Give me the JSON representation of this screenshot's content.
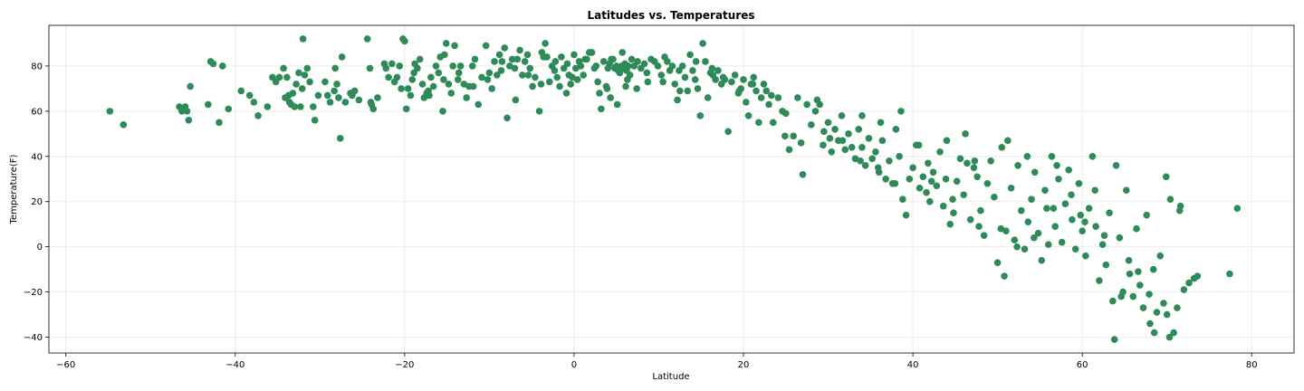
{
  "chart_data": {
    "type": "scatter",
    "title": "Latitudes vs. Temperatures",
    "xlabel": "Latitude",
    "ylabel": "Temperature(F)",
    "xlim": [
      -62,
      85
    ],
    "ylim": [
      -47,
      98
    ],
    "xticks": [
      -60,
      -40,
      -20,
      0,
      20,
      40,
      60,
      80
    ],
    "yticks": [
      -40,
      -20,
      0,
      20,
      40,
      60,
      80
    ],
    "grid": true,
    "marker_color": "#2e8b57",
    "points": [
      [
        -54.8,
        60
      ],
      [
        -53.2,
        54
      ],
      [
        -46.6,
        62
      ],
      [
        -46.3,
        60
      ],
      [
        -46.1,
        61
      ],
      [
        -45.9,
        62
      ],
      [
        -45.7,
        60
      ],
      [
        -45.5,
        56
      ],
      [
        -45.3,
        71
      ],
      [
        -43.2,
        63
      ],
      [
        -42.9,
        82
      ],
      [
        -42.6,
        81
      ],
      [
        -41.9,
        55
      ],
      [
        -41.5,
        80
      ],
      [
        -40.8,
        61
      ],
      [
        -39.3,
        69
      ],
      [
        -38.3,
        67
      ],
      [
        -37.8,
        64
      ],
      [
        -37.3,
        58
      ],
      [
        -36.2,
        62
      ],
      [
        -35.2,
        73
      ],
      [
        -34.8,
        75
      ],
      [
        -34.3,
        79
      ],
      [
        -34.1,
        66
      ],
      [
        -33.9,
        75
      ],
      [
        -33.6,
        64
      ],
      [
        -33.4,
        63
      ],
      [
        -33.2,
        68
      ],
      [
        -33.0,
        62
      ],
      [
        -32.8,
        72
      ],
      [
        -32.5,
        77
      ],
      [
        -32.3,
        62
      ],
      [
        -32.0,
        92
      ],
      [
        -31.8,
        76
      ],
      [
        -31.5,
        79
      ],
      [
        -31.2,
        73
      ],
      [
        -30.8,
        62
      ],
      [
        -30.6,
        56
      ],
      [
        -29.4,
        73
      ],
      [
        -29.1,
        67
      ],
      [
        -28.8,
        64
      ],
      [
        -28.2,
        79
      ],
      [
        -28.0,
        72
      ],
      [
        -27.8,
        66
      ],
      [
        -27.6,
        48
      ],
      [
        -27.4,
        84
      ],
      [
        -27.0,
        64
      ],
      [
        -26.2,
        67
      ],
      [
        -25.9,
        69
      ],
      [
        -25.4,
        65
      ],
      [
        -24.4,
        92
      ],
      [
        -24.1,
        79
      ],
      [
        -23.9,
        63
      ],
      [
        -23.7,
        61
      ],
      [
        -23.2,
        66
      ],
      [
        -22.2,
        79
      ],
      [
        -21.9,
        75
      ],
      [
        -21.5,
        81
      ],
      [
        -21.2,
        73
      ],
      [
        -20.9,
        75
      ],
      [
        -20.6,
        80
      ],
      [
        -20.2,
        92
      ],
      [
        -20.0,
        91
      ],
      [
        -19.8,
        61
      ],
      [
        -19.6,
        70
      ],
      [
        -19.3,
        67
      ],
      [
        -19.1,
        74
      ],
      [
        -18.8,
        81
      ],
      [
        -18.5,
        79
      ],
      [
        -18.2,
        83
      ],
      [
        -17.9,
        72
      ],
      [
        -17.7,
        66
      ],
      [
        -17.4,
        68
      ],
      [
        -17.2,
        69
      ],
      [
        -16.9,
        75
      ],
      [
        -16.6,
        71
      ],
      [
        -16.3,
        80
      ],
      [
        -16.0,
        77
      ],
      [
        -15.8,
        84
      ],
      [
        -15.5,
        60
      ],
      [
        -15.3,
        85
      ],
      [
        -15.1,
        90
      ],
      [
        -14.8,
        72
      ],
      [
        -14.5,
        68
      ],
      [
        -14.3,
        80
      ],
      [
        -14.1,
        89
      ],
      [
        -13.7,
        74
      ],
      [
        -13.4,
        80
      ],
      [
        -13.0,
        72
      ],
      [
        -12.7,
        66
      ],
      [
        -12.4,
        71
      ],
      [
        -12.0,
        80
      ],
      [
        -11.7,
        83
      ],
      [
        -11.3,
        63
      ],
      [
        -10.9,
        75
      ],
      [
        -10.4,
        89
      ],
      [
        -10.0,
        77
      ],
      [
        -9.7,
        70
      ],
      [
        -9.4,
        82
      ],
      [
        -9.1,
        76
      ],
      [
        -8.8,
        85
      ],
      [
        -8.5,
        82
      ],
      [
        -8.2,
        88
      ],
      [
        -7.9,
        57
      ],
      [
        -7.6,
        80
      ],
      [
        -7.3,
        83
      ],
      [
        -7.0,
        79
      ],
      [
        -6.7,
        83
      ],
      [
        -6.4,
        87
      ],
      [
        -6.1,
        76
      ],
      [
        -5.8,
        82
      ],
      [
        -5.5,
        85
      ],
      [
        -5.2,
        79
      ],
      [
        -4.9,
        71
      ],
      [
        -4.6,
        75
      ],
      [
        -4.1,
        60
      ],
      [
        -3.8,
        86
      ],
      [
        -3.6,
        84
      ],
      [
        -3.4,
        90
      ],
      [
        -3.2,
        84
      ],
      [
        -2.9,
        73
      ],
      [
        -2.6,
        80
      ],
      [
        -2.3,
        78
      ],
      [
        -2.0,
        75
      ],
      [
        -1.7,
        71
      ],
      [
        -1.5,
        84
      ],
      [
        -1.2,
        79
      ],
      [
        -0.9,
        68
      ],
      [
        -0.6,
        76
      ],
      [
        -0.4,
        72
      ],
      [
        -0.2,
        75
      ],
      [
        0.0,
        85
      ],
      [
        0.2,
        79
      ],
      [
        0.4,
        74
      ],
      [
        0.6,
        82
      ],
      [
        0.8,
        80
      ],
      [
        1.1,
        76
      ],
      [
        1.5,
        83
      ],
      [
        1.8,
        86
      ],
      [
        2.1,
        86
      ],
      [
        2.4,
        79
      ],
      [
        2.8,
        73
      ],
      [
        3.2,
        61
      ],
      [
        3.5,
        82
      ],
      [
        3.8,
        71
      ],
      [
        4.0,
        79
      ],
      [
        4.2,
        81
      ],
      [
        4.4,
        83
      ],
      [
        4.6,
        83
      ],
      [
        4.8,
        79
      ],
      [
        5.0,
        80
      ],
      [
        5.2,
        78
      ],
      [
        5.4,
        77
      ],
      [
        5.6,
        80
      ],
      [
        5.8,
        79
      ],
      [
        6.0,
        81
      ],
      [
        6.2,
        78
      ],
      [
        6.4,
        80
      ],
      [
        6.6,
        76
      ],
      [
        5.1,
        63
      ],
      [
        5.7,
        86
      ],
      [
        6.8,
        83
      ],
      [
        6.1,
        71
      ],
      [
        4.3,
        66
      ],
      [
        3.0,
        68
      ],
      [
        7.1,
        80
      ],
      [
        7.5,
        82
      ],
      [
        7.9,
        79
      ],
      [
        8.3,
        81
      ],
      [
        8.7,
        73
      ],
      [
        9.1,
        83
      ],
      [
        9.5,
        82
      ],
      [
        9.9,
        80
      ],
      [
        10.3,
        76
      ],
      [
        10.7,
        84
      ],
      [
        11.0,
        82
      ],
      [
        11.3,
        78
      ],
      [
        11.6,
        80
      ],
      [
        11.9,
        72
      ],
      [
        12.2,
        65
      ],
      [
        12.5,
        69
      ],
      [
        12.8,
        80
      ],
      [
        13.1,
        75
      ],
      [
        13.4,
        69
      ],
      [
        13.7,
        85
      ],
      [
        14.0,
        78
      ],
      [
        14.3,
        74
      ],
      [
        14.6,
        70
      ],
      [
        14.9,
        58
      ],
      [
        15.2,
        90
      ],
      [
        15.5,
        82
      ],
      [
        15.8,
        66
      ],
      [
        16.1,
        77
      ],
      [
        16.4,
        76
      ],
      [
        16.7,
        74
      ],
      [
        17.0,
        78
      ],
      [
        17.4,
        72
      ],
      [
        17.8,
        74
      ],
      [
        18.2,
        51
      ],
      [
        18.6,
        73
      ],
      [
        19.0,
        76
      ],
      [
        19.4,
        68
      ],
      [
        19.7,
        70
      ],
      [
        20.0,
        74
      ],
      [
        20.3,
        64
      ],
      [
        20.6,
        58
      ],
      [
        20.9,
        72
      ],
      [
        21.2,
        75
      ],
      [
        21.5,
        69
      ],
      [
        21.8,
        55
      ],
      [
        22.1,
        66
      ],
      [
        22.4,
        72
      ],
      [
        22.7,
        69
      ],
      [
        23.0,
        63
      ],
      [
        23.5,
        55
      ],
      [
        24.1,
        66
      ],
      [
        24.6,
        60
      ],
      [
        25.0,
        59
      ],
      [
        25.4,
        43
      ],
      [
        25.9,
        49
      ],
      [
        26.4,
        66
      ],
      [
        27.0,
        32
      ],
      [
        27.5,
        63
      ],
      [
        28.0,
        54
      ],
      [
        28.5,
        60
      ],
      [
        29.0,
        63
      ],
      [
        29.5,
        51
      ],
      [
        30.0,
        55
      ],
      [
        30.4,
        42
      ],
      [
        30.8,
        52
      ],
      [
        31.2,
        47
      ],
      [
        31.6,
        58
      ],
      [
        32.0,
        43
      ],
      [
        32.4,
        50
      ],
      [
        32.8,
        44
      ],
      [
        33.2,
        39
      ],
      [
        33.6,
        52
      ],
      [
        34.0,
        44
      ],
      [
        34.4,
        36
      ],
      [
        34.8,
        48
      ],
      [
        35.2,
        39
      ],
      [
        35.6,
        42
      ],
      [
        36.0,
        33
      ],
      [
        36.4,
        47
      ],
      [
        36.8,
        30
      ],
      [
        37.2,
        38
      ],
      [
        37.6,
        28
      ],
      [
        38.0,
        52
      ],
      [
        38.4,
        40
      ],
      [
        38.8,
        21
      ],
      [
        39.2,
        14
      ],
      [
        39.6,
        30
      ],
      [
        40.0,
        35
      ],
      [
        40.4,
        45
      ],
      [
        40.8,
        26
      ],
      [
        41.2,
        31
      ],
      [
        41.6,
        24
      ],
      [
        42.0,
        20
      ],
      [
        42.4,
        33
      ],
      [
        42.8,
        27
      ],
      [
        43.2,
        42
      ],
      [
        43.6,
        18
      ],
      [
        44.0,
        47
      ],
      [
        44.4,
        10
      ],
      [
        44.8,
        15
      ],
      [
        45.2,
        29
      ],
      [
        45.6,
        39
      ],
      [
        46.0,
        23
      ],
      [
        46.4,
        37
      ],
      [
        46.8,
        12
      ],
      [
        47.2,
        35
      ],
      [
        47.6,
        31
      ],
      [
        48.0,
        16
      ],
      [
        48.4,
        5
      ],
      [
        48.8,
        28
      ],
      [
        49.2,
        38
      ],
      [
        49.6,
        22
      ],
      [
        50.0,
        -7
      ],
      [
        50.4,
        8
      ],
      [
        50.8,
        -13
      ],
      [
        51.2,
        47
      ],
      [
        51.6,
        26
      ],
      [
        52.0,
        3
      ],
      [
        52.4,
        36
      ],
      [
        52.8,
        16
      ],
      [
        53.2,
        -1
      ],
      [
        53.6,
        11
      ],
      [
        54.0,
        21
      ],
      [
        54.4,
        33
      ],
      [
        54.8,
        6
      ],
      [
        55.2,
        -6
      ],
      [
        55.6,
        25
      ],
      [
        56.0,
        1
      ],
      [
        56.4,
        40
      ],
      [
        56.8,
        9
      ],
      [
        57.2,
        30
      ],
      [
        57.6,
        2
      ],
      [
        58.0,
        19
      ],
      [
        58.4,
        34
      ],
      [
        58.8,
        12
      ],
      [
        59.2,
        -1
      ],
      [
        59.6,
        28
      ],
      [
        60.0,
        7
      ],
      [
        60.4,
        -4
      ],
      [
        60.8,
        17
      ],
      [
        61.2,
        40
      ],
      [
        61.6,
        9
      ],
      [
        62.0,
        -15
      ],
      [
        62.4,
        1
      ],
      [
        62.8,
        -8
      ],
      [
        63.2,
        15
      ],
      [
        63.6,
        -24
      ],
      [
        64.0,
        36
      ],
      [
        64.4,
        4
      ],
      [
        64.8,
        -20
      ],
      [
        65.2,
        25
      ],
      [
        65.6,
        -12
      ],
      [
        66.0,
        -22
      ],
      [
        66.4,
        8
      ],
      [
        66.8,
        -17
      ],
      [
        67.2,
        -27
      ],
      [
        67.6,
        14
      ],
      [
        68.0,
        -34
      ],
      [
        68.4,
        -10
      ],
      [
        68.8,
        -29
      ],
      [
        69.2,
        -4
      ],
      [
        69.6,
        -25
      ],
      [
        70.0,
        -30
      ],
      [
        70.4,
        21
      ],
      [
        70.8,
        -38
      ],
      [
        71.2,
        -27
      ],
      [
        71.6,
        18
      ],
      [
        72.0,
        -19
      ],
      [
        72.6,
        -16
      ],
      [
        73.2,
        -14
      ],
      [
        38.6,
        60
      ],
      [
        36.2,
        55
      ],
      [
        34.0,
        58
      ],
      [
        29.4,
        45
      ],
      [
        41.8,
        37
      ],
      [
        43.9,
        30
      ],
      [
        46.2,
        50
      ],
      [
        50.5,
        44
      ],
      [
        53.5,
        40
      ],
      [
        57.0,
        36
      ],
      [
        59.8,
        14
      ],
      [
        61.5,
        25
      ],
      [
        63.8,
        -41
      ],
      [
        65.5,
        -6
      ],
      [
        68.5,
        -38
      ],
      [
        70.3,
        -40
      ],
      [
        71.5,
        16
      ],
      [
        77.4,
        -12
      ],
      [
        78.3,
        17
      ],
      [
        55.8,
        17
      ],
      [
        47.8,
        9
      ],
      [
        51.0,
        7
      ],
      [
        52.3,
        0
      ],
      [
        54.3,
        4
      ],
      [
        56.6,
        17
      ],
      [
        58.7,
        23
      ],
      [
        60.3,
        11
      ],
      [
        62.6,
        5
      ],
      [
        64.6,
        -22
      ],
      [
        66.6,
        -11
      ],
      [
        67.9,
        -21
      ],
      [
        69.9,
        31
      ],
      [
        73.6,
        -13
      ],
      [
        47.3,
        38
      ],
      [
        44.7,
        21
      ],
      [
        42.2,
        29
      ],
      [
        40.7,
        45
      ],
      [
        37.9,
        28
      ],
      [
        35.9,
        35
      ],
      [
        33.8,
        38
      ],
      [
        31.7,
        47
      ],
      [
        30.2,
        48
      ],
      [
        28.7,
        65
      ],
      [
        26.8,
        46
      ],
      [
        24.9,
        49
      ],
      [
        23.3,
        67
      ],
      [
        21.1,
        72
      ],
      [
        19.5,
        69
      ],
      [
        17.6,
        75
      ],
      [
        16.3,
        79
      ],
      [
        14.4,
        82
      ],
      [
        12.4,
        78
      ],
      [
        10.5,
        73
      ],
      [
        8.6,
        77
      ],
      [
        7.4,
        70
      ],
      [
        6.3,
        74
      ],
      [
        3.9,
        70
      ],
      [
        2.6,
        80
      ],
      [
        1.3,
        83
      ],
      [
        -0.8,
        81
      ],
      [
        -2.2,
        82
      ],
      [
        -3.9,
        72
      ],
      [
        -5.4,
        76
      ],
      [
        -6.9,
        65
      ],
      [
        -8.6,
        78
      ],
      [
        -10.2,
        74
      ],
      [
        -11.9,
        71
      ],
      [
        -13.6,
        77
      ],
      [
        -15.4,
        74
      ],
      [
        -17.1,
        67
      ],
      [
        -18.9,
        77
      ],
      [
        -20.4,
        70
      ],
      [
        -22.4,
        81
      ],
      [
        -24.0,
        64
      ],
      [
        -26.4,
        68
      ],
      [
        -28.3,
        69
      ],
      [
        -30.2,
        67
      ],
      [
        -32.1,
        70
      ],
      [
        -33.7,
        67
      ],
      [
        -35.6,
        75
      ]
    ]
  }
}
